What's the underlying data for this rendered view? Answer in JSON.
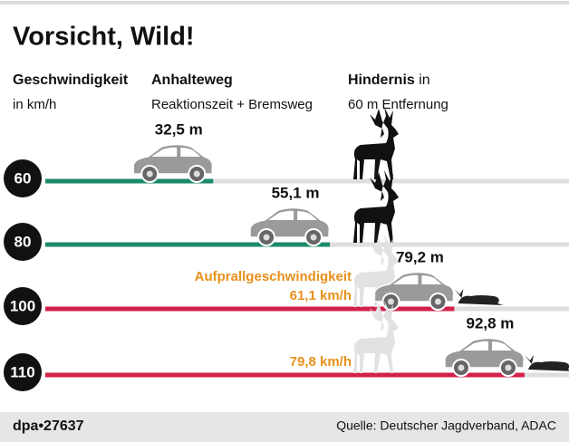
{
  "chart_data": {
    "type": "bar",
    "orientation": "horizontal",
    "title": "Vorsicht, Wild!",
    "headers": {
      "speed": "Geschwindigkeit",
      "speed_unit": "in km/h",
      "distance": "Anhalteweg",
      "distance_note": "Reaktionszeit + Bremsweg",
      "obstacle": "Hindernis",
      "obstacle_in": "in",
      "obstacle_note": "60 m Entfernung"
    },
    "categories": [
      "60",
      "80",
      "100",
      "110"
    ],
    "values": [
      32.5,
      55.1,
      79.2,
      92.8
    ],
    "value_labels": [
      "32,5 m",
      "55,1 m",
      "79,2 m",
      "92,8 m"
    ],
    "colors": [
      "#1b8a6b",
      "#1b8a6b",
      "#d2224b",
      "#d2224b"
    ],
    "xlim": [
      0,
      100
    ],
    "annotations": {
      "impact_title": "Aufprallgeschwindigkeit",
      "impact_100": "61,1 km/h",
      "impact_110": "79,8 km/h"
    },
    "footer": {
      "agency": "dpa•27637",
      "source": "Quelle: Deutscher Jagdverband, ADAC"
    }
  }
}
